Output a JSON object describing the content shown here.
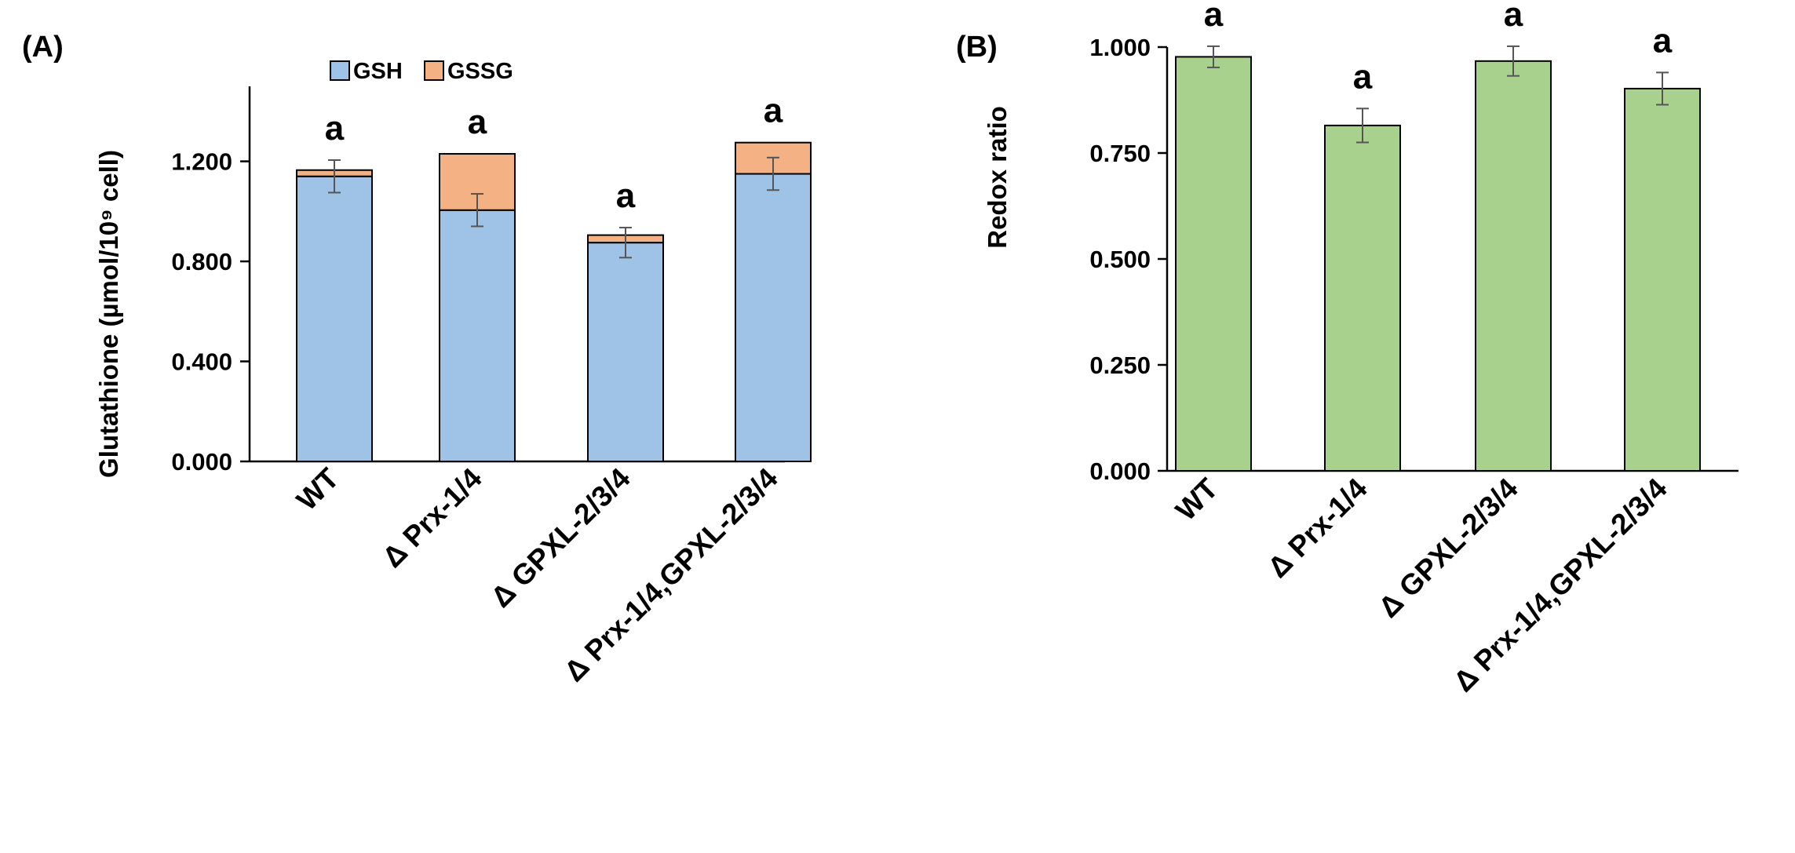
{
  "chart_data": [
    {
      "panel": "(A)",
      "type": "bar",
      "stacked": true,
      "ylabel": "Glutathione (µmol/10⁹ cell)",
      "ylim": [
        0,
        1.5
      ],
      "yticks": [
        0,
        0.4,
        0.8,
        1.2
      ],
      "ytick_labels": [
        "0.000",
        "0.400",
        "0.800",
        "1.200"
      ],
      "categories": [
        "WT",
        "Δ Prx-1/4",
        "Δ GPXL-2/3/4",
        "Δ Prx-1/4,GPXL-2/3/4"
      ],
      "series": [
        {
          "name": "GSH",
          "values": [
            1.14,
            1.005,
            0.875,
            1.15
          ],
          "errors": [
            0.065,
            0.065,
            0.06,
            0.065
          ]
        },
        {
          "name": "GSSG",
          "values": [
            0.025,
            0.225,
            0.03,
            0.125
          ]
        }
      ],
      "significance": [
        "a",
        "a",
        "a",
        "a"
      ],
      "legend_position": "top"
    },
    {
      "panel": "(B)",
      "type": "bar",
      "ylabel": "Redox ratio",
      "ylim": [
        0,
        1.0
      ],
      "yticks": [
        0,
        0.25,
        0.5,
        0.75,
        1.0
      ],
      "ytick_labels": [
        "0.000",
        "0.250",
        "0.500",
        "0.750",
        "1.000"
      ],
      "categories": [
        "WT",
        "Δ Prx-1/4",
        "Δ GPXL-2/3/4",
        "Δ Prx-1/4,GPXL-2/3/4"
      ],
      "series": [
        {
          "name": "Redox ratio",
          "values": [
            0.977,
            0.815,
            0.967,
            0.902
          ],
          "errors": [
            0.025,
            0.04,
            0.035,
            0.038
          ]
        }
      ],
      "significance": [
        "a",
        "a",
        "a",
        "a"
      ]
    }
  ],
  "colors": {
    "GSH": "#9fc3e7",
    "GSSG": "#f4b183",
    "redox": "#a9d18e"
  }
}
